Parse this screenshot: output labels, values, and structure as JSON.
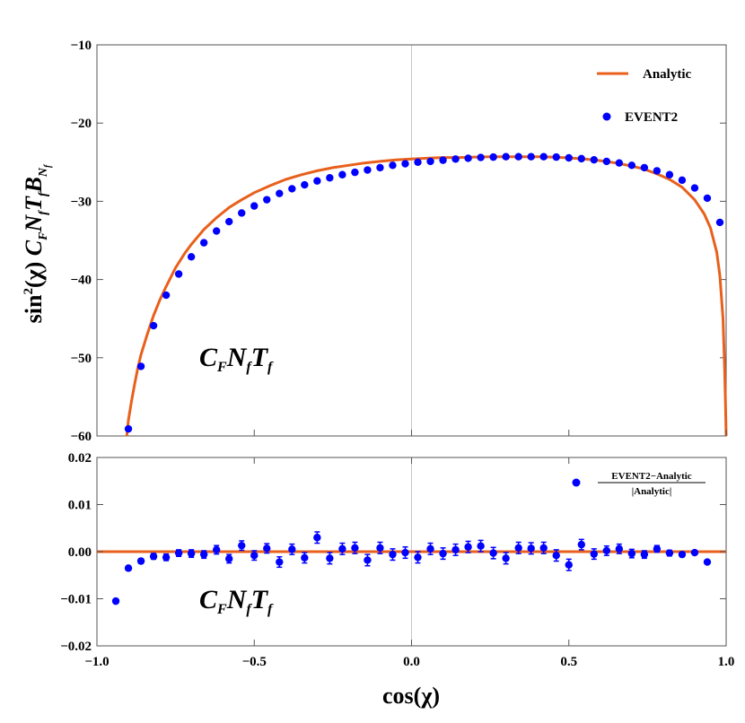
{
  "chart_data": [
    {
      "type": "line",
      "title": "",
      "ylabel_parts": {
        "a": "sin",
        "a_sup": "2",
        "b": "(χ) ",
        "c": "C",
        "c_sub": "F",
        "d": "N",
        "d_sub": "f",
        "e": "T",
        "e_sub": "f",
        "f": "B",
        "f_sub": "N",
        "f_subsub": "f"
      },
      "xlim": [
        -1.0,
        1.0
      ],
      "ylim": [
        -60,
        -10
      ],
      "yticks": [
        -10,
        -20,
        -30,
        -40,
        -50,
        -60
      ],
      "ytick_labels": [
        "−10",
        "−20",
        "−30",
        "−40",
        "−50",
        "−60"
      ],
      "grid": false,
      "vline_x": 0,
      "legend_position": "top-right",
      "inset_label": {
        "c": "C",
        "c_sub": "F",
        "n": "N",
        "n_sub": "f",
        "t": "T",
        "t_sub": "f"
      },
      "series": [
        {
          "name": "Analytic",
          "style": "line",
          "color": "#E8601C",
          "x": [
            -0.905,
            -0.9,
            -0.89,
            -0.88,
            -0.87,
            -0.86,
            -0.84,
            -0.82,
            -0.8,
            -0.78,
            -0.75,
            -0.72,
            -0.7,
            -0.66,
            -0.62,
            -0.58,
            -0.54,
            -0.5,
            -0.45,
            -0.4,
            -0.35,
            -0.3,
            -0.25,
            -0.2,
            -0.15,
            -0.1,
            -0.05,
            0.0,
            0.05,
            0.1,
            0.15,
            0.2,
            0.25,
            0.3,
            0.35,
            0.4,
            0.45,
            0.5,
            0.55,
            0.6,
            0.65,
            0.7,
            0.74,
            0.78,
            0.82,
            0.86,
            0.9,
            0.93,
            0.95,
            0.97,
            0.98,
            0.99,
            0.995,
            0.998,
            1.0
          ],
          "y": [
            -60.0,
            -58.0,
            -55.5,
            -53.3,
            -51.3,
            -49.6,
            -47.0,
            -44.6,
            -42.6,
            -40.9,
            -38.5,
            -36.6,
            -35.5,
            -33.6,
            -32.1,
            -30.8,
            -29.8,
            -28.9,
            -28.0,
            -27.2,
            -26.6,
            -26.1,
            -25.7,
            -25.4,
            -25.1,
            -24.9,
            -24.7,
            -24.6,
            -24.5,
            -24.4,
            -24.4,
            -24.35,
            -24.3,
            -24.3,
            -24.3,
            -24.3,
            -24.35,
            -24.45,
            -24.6,
            -24.8,
            -25.1,
            -25.5,
            -25.9,
            -26.5,
            -27.2,
            -28.2,
            -29.8,
            -31.6,
            -33.4,
            -36.5,
            -39.5,
            -45.0,
            -51.0,
            -56.0,
            -60.0
          ]
        },
        {
          "name": "EVENT2",
          "style": "points",
          "color": "#0000FF",
          "x": [
            -0.9,
            -0.86,
            -0.82,
            -0.78,
            -0.74,
            -0.7,
            -0.66,
            -0.62,
            -0.58,
            -0.54,
            -0.5,
            -0.46,
            -0.42,
            -0.38,
            -0.34,
            -0.3,
            -0.26,
            -0.22,
            -0.18,
            -0.14,
            -0.1,
            -0.06,
            -0.02,
            0.02,
            0.06,
            0.1,
            0.14,
            0.18,
            0.22,
            0.26,
            0.3,
            0.34,
            0.38,
            0.42,
            0.46,
            0.5,
            0.54,
            0.58,
            0.62,
            0.66,
            0.7,
            0.74,
            0.78,
            0.82,
            0.86,
            0.9,
            0.94,
            0.98
          ],
          "y": [
            -59.1,
            -51.1,
            -45.9,
            -42.0,
            -39.3,
            -37.1,
            -35.3,
            -33.8,
            -32.6,
            -31.5,
            -30.6,
            -29.8,
            -29.0,
            -28.4,
            -27.9,
            -27.4,
            -27.0,
            -26.6,
            -26.3,
            -26.0,
            -25.7,
            -25.4,
            -25.2,
            -25.0,
            -24.9,
            -24.75,
            -24.6,
            -24.5,
            -24.4,
            -24.35,
            -24.3,
            -24.3,
            -24.3,
            -24.3,
            -24.35,
            -24.45,
            -24.55,
            -24.7,
            -24.9,
            -25.1,
            -25.4,
            -25.7,
            -26.1,
            -26.6,
            -27.3,
            -28.3,
            -29.6,
            -32.7
          ]
        }
      ]
    },
    {
      "type": "scatter",
      "title": "",
      "xlabel": "cos(χ)",
      "xlim": [
        -1.0,
        1.0
      ],
      "ylim": [
        -0.02,
        0.02
      ],
      "xticks": [
        -1.0,
        -0.5,
        0.0,
        0.5,
        1.0
      ],
      "xtick_labels": [
        "−1.0",
        "−0.5",
        "0.0",
        "0.5",
        "1.0"
      ],
      "yticks": [
        0.02,
        0.01,
        0.0,
        -0.01,
        -0.02
      ],
      "ytick_labels": [
        "0.02",
        "0.01",
        "0.00",
        "−0.01",
        "−0.02"
      ],
      "grid": false,
      "vline_x": 0,
      "hline_y": 0,
      "hline_color": "#E8601C",
      "legend_position": "top-right",
      "legend_label": {
        "numerator": "EVENT2−Analytic",
        "denominator": "|Analytic|"
      },
      "inset_label": {
        "c": "C",
        "c_sub": "F",
        "n": "N",
        "n_sub": "f",
        "t": "T",
        "t_sub": "f"
      },
      "series": [
        {
          "name": "EVENT2−Analytic / |Analytic|",
          "color": "#0000FF",
          "x": [
            -0.94,
            -0.9,
            -0.86,
            -0.82,
            -0.78,
            -0.74,
            -0.7,
            -0.66,
            -0.62,
            -0.58,
            -0.54,
            -0.5,
            -0.46,
            -0.42,
            -0.38,
            -0.34,
            -0.3,
            -0.26,
            -0.22,
            -0.18,
            -0.14,
            -0.1,
            -0.06,
            -0.02,
            0.02,
            0.06,
            0.1,
            0.14,
            0.18,
            0.22,
            0.26,
            0.3,
            0.34,
            0.38,
            0.42,
            0.46,
            0.5,
            0.54,
            0.58,
            0.62,
            0.66,
            0.7,
            0.74,
            0.78,
            0.82,
            0.86,
            0.9,
            0.94
          ],
          "y": [
            -0.0105,
            -0.0035,
            -0.002,
            -0.001,
            -0.0012,
            -0.0003,
            -0.0004,
            -0.0006,
            0.0004,
            -0.0015,
            0.0013,
            -0.0008,
            0.0007,
            -0.0022,
            0.0005,
            -0.0013,
            0.003,
            -0.0014,
            0.0006,
            0.0008,
            -0.0018,
            0.0008,
            -0.0006,
            -0.0002,
            -0.0012,
            0.0006,
            -0.0004,
            0.0004,
            0.001,
            0.0012,
            -0.0003,
            -0.0014,
            0.0008,
            0.0007,
            0.0008,
            -0.0008,
            -0.0028,
            0.0015,
            -0.0005,
            0.0002,
            0.0006,
            -0.0004,
            -0.0006,
            0.0006,
            -0.0003,
            -0.0006,
            -0.0002,
            -0.0022
          ],
          "err": [
            0.0002,
            0.0004,
            0.0005,
            0.0006,
            0.0007,
            0.0007,
            0.0008,
            0.0008,
            0.0009,
            0.0009,
            0.001,
            0.001,
            0.001,
            0.0011,
            0.0011,
            0.0011,
            0.0012,
            0.0012,
            0.0012,
            0.0012,
            0.0012,
            0.0012,
            0.0012,
            0.0012,
            0.0012,
            0.0012,
            0.0012,
            0.0012,
            0.0012,
            0.0012,
            0.0012,
            0.0012,
            0.0012,
            0.0012,
            0.0012,
            0.0012,
            0.0012,
            0.0011,
            0.0011,
            0.001,
            0.001,
            0.0009,
            0.0008,
            0.0007,
            0.0006,
            0.0005,
            0.0004,
            0.0003
          ]
        }
      ]
    }
  ]
}
